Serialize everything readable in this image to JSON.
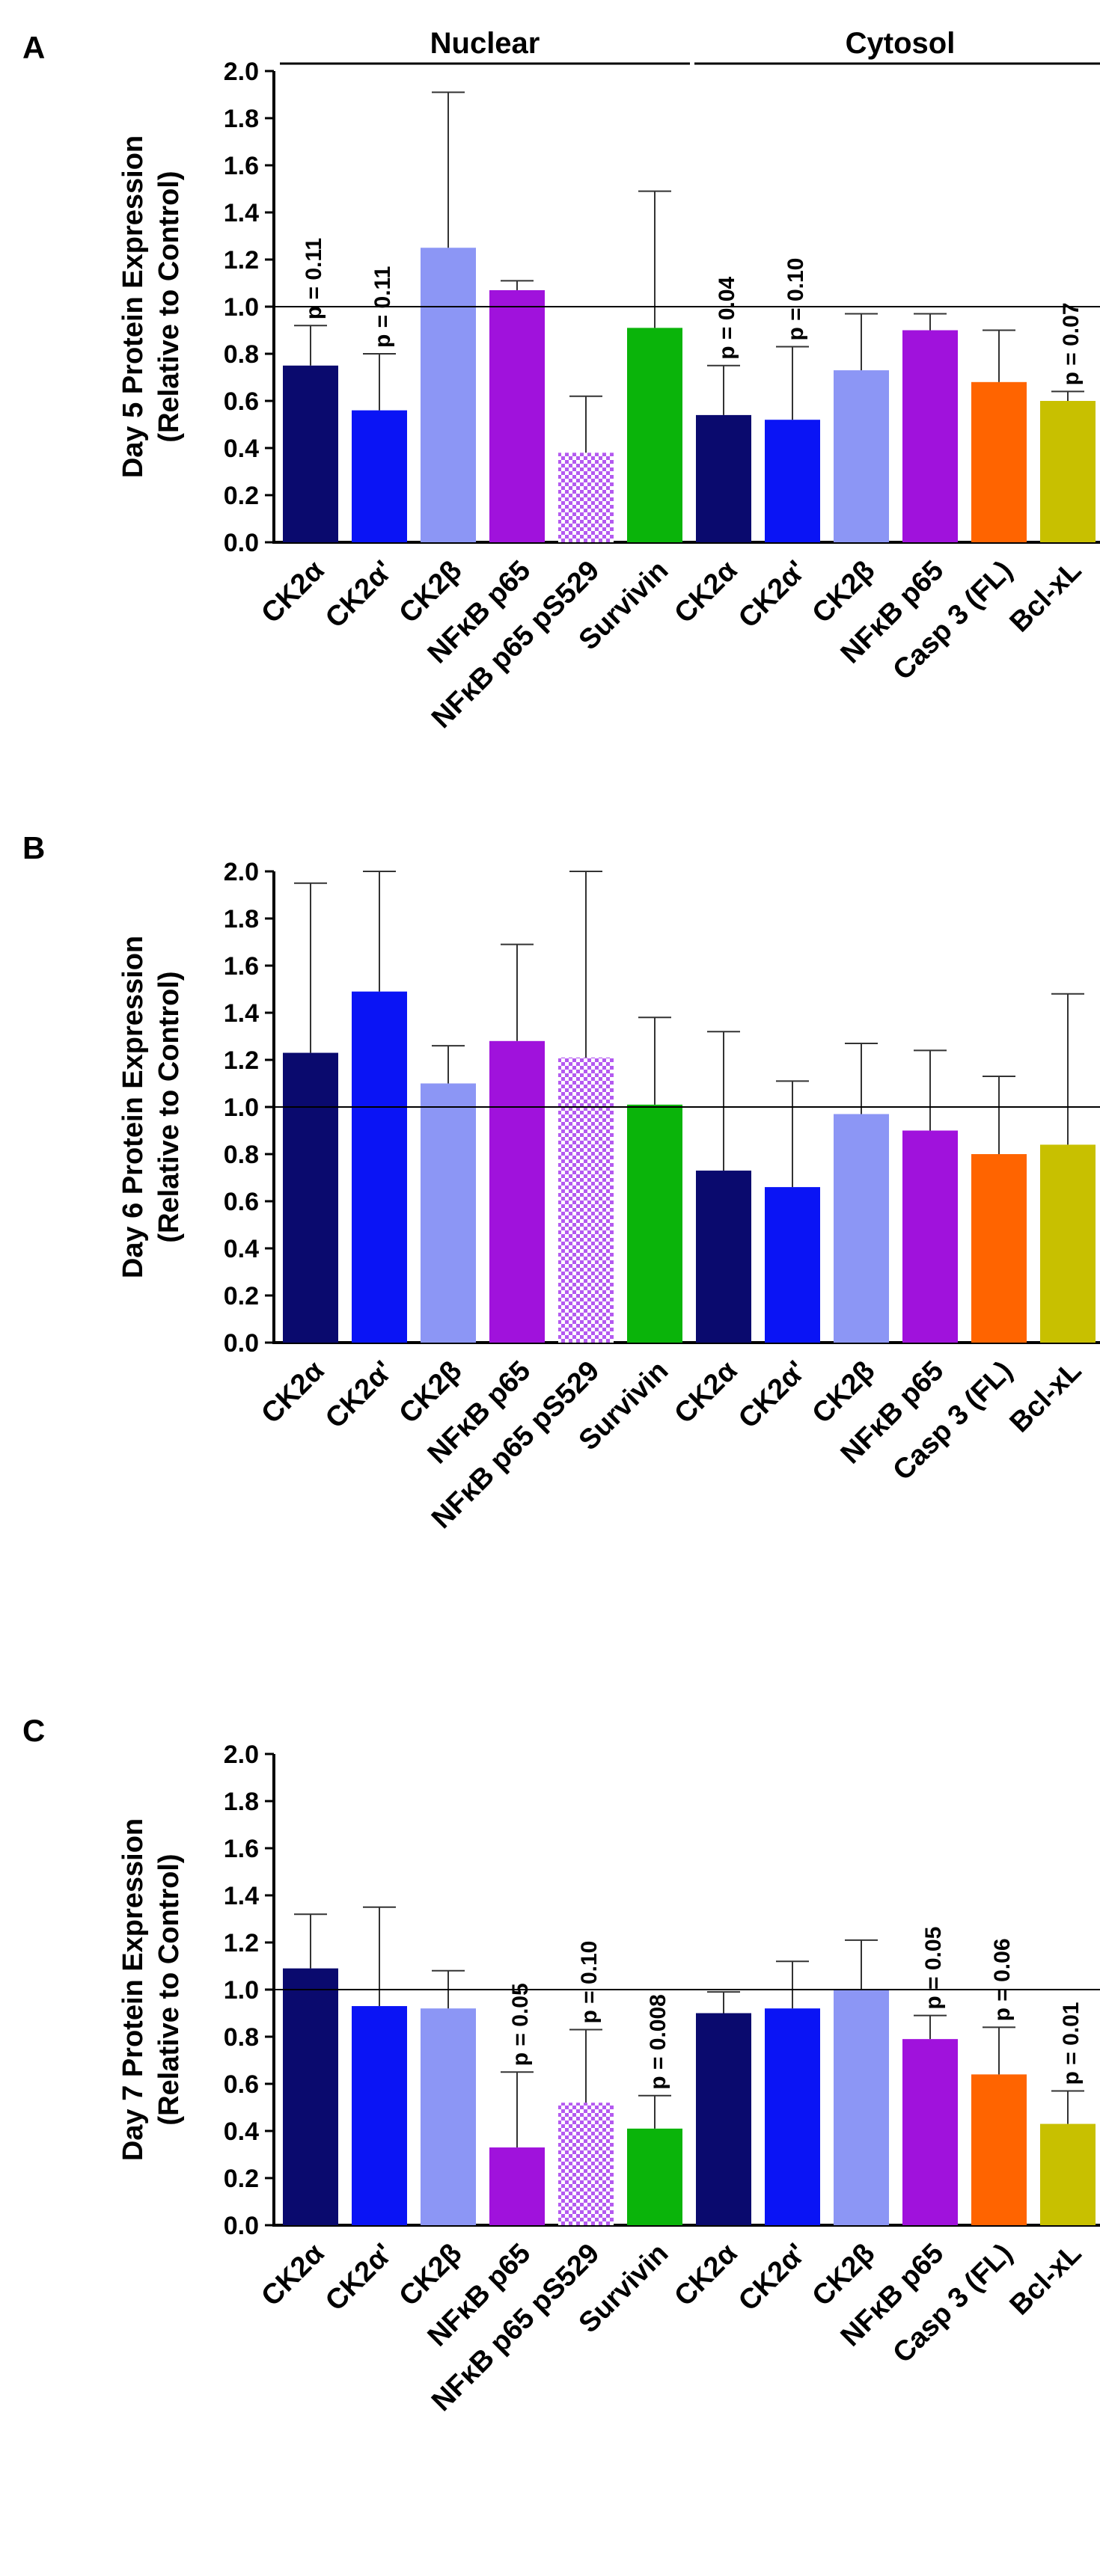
{
  "figure": {
    "panel_labels": [
      "A",
      "B",
      "C"
    ],
    "group_labels": [
      "Nuclear",
      "Cytosol"
    ]
  },
  "chart_data": [
    {
      "type": "bar",
      "panel": "A",
      "title": "",
      "ylabel": "Day 5 Protein Expression\n(Relative to Control)",
      "xlabel": "",
      "ylim": [
        0,
        2.0
      ],
      "yticks": [
        "0.0",
        "0.2",
        "0.4",
        "0.6",
        "0.8",
        "1.0",
        "1.2",
        "1.4",
        "1.6",
        "1.8",
        "2.0"
      ],
      "reference_line": 1.0,
      "groups": [
        {
          "label": "Nuclear",
          "count": 6
        },
        {
          "label": "Cytosol",
          "count": 6
        }
      ],
      "categories": [
        "CK2α",
        "CK2α'",
        "CK2β",
        "NFκB p65",
        "NFκB p65 pS529",
        "Survivin",
        "CK2α",
        "CK2α'",
        "CK2β",
        "NFκB p65",
        "Casp 3 (FL)",
        "Bcl-xL"
      ],
      "values": [
        0.75,
        0.56,
        1.25,
        1.07,
        0.38,
        0.91,
        0.54,
        0.52,
        0.73,
        0.9,
        0.68,
        0.6
      ],
      "errors": [
        0.17,
        0.24,
        0.66,
        0.04,
        0.24,
        0.58,
        0.21,
        0.31,
        0.24,
        0.07,
        0.22,
        0.04
      ],
      "annotations": [
        "p = 0.11",
        "p = 0.11",
        "",
        "",
        "",
        "",
        "p = 0.04",
        "p = 0.10",
        "",
        "",
        "",
        "p = 0.07"
      ]
    },
    {
      "type": "bar",
      "panel": "B",
      "title": "",
      "ylabel": "Day 6 Protein Expression\n(Relative to Control)",
      "xlabel": "",
      "ylim": [
        0,
        2.0
      ],
      "yticks": [
        "0.0",
        "0.2",
        "0.4",
        "0.6",
        "0.8",
        "1.0",
        "1.2",
        "1.4",
        "1.6",
        "1.8",
        "2.0"
      ],
      "reference_line": 1.0,
      "categories": [
        "CK2α",
        "CK2α'",
        "CK2β",
        "NFκB p65",
        "NFκB p65 pS529",
        "Survivin",
        "CK2α",
        "CK2α'",
        "CK2β",
        "NFκB p65",
        "Casp 3 (FL)",
        "Bcl-xL"
      ],
      "values": [
        1.23,
        1.49,
        1.1,
        1.28,
        1.21,
        1.01,
        0.73,
        0.66,
        0.97,
        0.9,
        0.8,
        0.84
      ],
      "errors": [
        0.72,
        0.51,
        0.16,
        0.41,
        0.79,
        0.37,
        0.59,
        0.45,
        0.3,
        0.34,
        0.33,
        0.64
      ],
      "annotations": [
        "",
        "",
        "",
        "",
        "",
        "",
        "",
        "",
        "",
        "",
        "",
        ""
      ]
    },
    {
      "type": "bar",
      "panel": "C",
      "title": "",
      "ylabel": "Day 7 Protein Expression\n(Relative to Control)",
      "xlabel": "",
      "ylim": [
        0,
        2.0
      ],
      "yticks": [
        "0.0",
        "0.2",
        "0.4",
        "0.6",
        "0.8",
        "1.0",
        "1.2",
        "1.4",
        "1.6",
        "1.8",
        "2.0"
      ],
      "reference_line": 1.0,
      "categories": [
        "CK2α",
        "CK2α'",
        "CK2β",
        "NFκB p65",
        "NFκB p65 pS529",
        "Survivin",
        "CK2α",
        "CK2α'",
        "CK2β",
        "NFκB p65",
        "Casp 3 (FL)",
        "Bcl-xL"
      ],
      "values": [
        1.09,
        0.93,
        0.92,
        0.33,
        0.52,
        0.41,
        0.9,
        0.92,
        1.0,
        0.79,
        0.64,
        0.43
      ],
      "errors": [
        0.23,
        0.42,
        0.16,
        0.32,
        0.31,
        0.14,
        0.09,
        0.2,
        0.21,
        0.1,
        0.2,
        0.14
      ],
      "annotations": [
        "",
        "",
        "",
        "p = 0.05",
        "p = 0.10",
        "p = 0.008",
        "",
        "",
        "",
        "p = 0.05",
        "p = 0.06",
        "p = 0.01"
      ]
    }
  ],
  "series_colors": [
    "#0a0a6e",
    "#0a14f5",
    "#8c96f5",
    "#a012dc",
    "#b45af0",
    "#0ab40a",
    "#0a0a6e",
    "#0a14f5",
    "#8c96f5",
    "#a012dc",
    "#ff6400",
    "#c8c000"
  ],
  "hatched_bar_index": 4
}
